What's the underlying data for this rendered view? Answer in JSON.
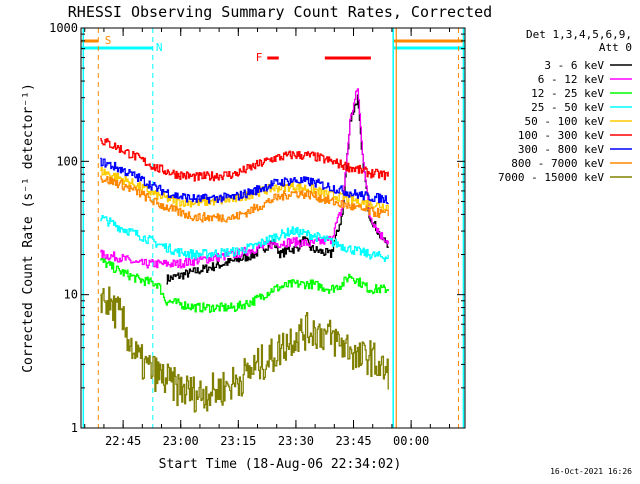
{
  "chart_data": {
    "type": "line",
    "title": "RHESSI Observing Summary Count Rates, Corrected",
    "xlabel": "Start Time (18-Aug-06 22:34:02)",
    "ylabel": "Corrected Count Rate (s⁻¹ detector⁻¹)",
    "yscale": "log",
    "ylim": [
      1,
      1000
    ],
    "xlim": [
      "22:34:02",
      "00:14:02"
    ],
    "xticks": [
      "22:45",
      "23:00",
      "23:15",
      "23:30",
      "23:45",
      "00:00"
    ],
    "yticks": [
      "1",
      "10",
      "100",
      "1000"
    ],
    "grid": false,
    "legend_position": "top-right",
    "legend_header": [
      "Det 1,3,4,5,6,9,",
      "Att 0"
    ],
    "x_unit": "minutes since 22:34:02",
    "series": [
      {
        "name": "3 - 6 keV",
        "color": "#000000",
        "x": [
          5,
          10,
          15,
          20,
          22,
          30,
          40,
          45,
          50,
          52,
          54,
          56,
          58,
          60,
          65,
          68,
          70,
          72,
          73,
          75,
          78,
          80
        ],
        "values": [
          null,
          null,
          null,
          null,
          13,
          15,
          18,
          20,
          25,
          20,
          22,
          22,
          26,
          22,
          20,
          40,
          200,
          300,
          120,
          40,
          27,
          24
        ]
      },
      {
        "name": "6 - 12 keV",
        "color": "#ff00ff",
        "x": [
          5,
          10,
          15,
          20,
          25,
          30,
          40,
          45,
          50,
          55,
          60,
          65,
          68,
          70,
          72,
          73,
          75,
          78,
          80
        ],
        "values": [
          20,
          19,
          17,
          17,
          17,
          18,
          20,
          22,
          24,
          25,
          24,
          26,
          45,
          200,
          360,
          140,
          40,
          28,
          25
        ]
      },
      {
        "name": "12 - 25 keV",
        "color": "#00ff00",
        "x": [
          5,
          10,
          15,
          20,
          22,
          30,
          40,
          45,
          50,
          55,
          60,
          65,
          68,
          70,
          75,
          80
        ],
        "values": [
          18,
          15,
          13,
          12,
          9,
          8,
          8,
          9,
          11,
          12,
          12,
          11,
          12,
          14,
          11,
          11
        ]
      },
      {
        "name": "25 - 50 keV",
        "color": "#00ffff",
        "x": [
          5,
          10,
          15,
          20,
          25,
          30,
          40,
          45,
          50,
          55,
          60,
          65,
          70,
          75,
          80
        ],
        "values": [
          38,
          32,
          28,
          24,
          21,
          20,
          21,
          23,
          27,
          30,
          28,
          25,
          22,
          20,
          19
        ]
      },
      {
        "name": "50 - 100 keV",
        "color": "#ffcc00",
        "x": [
          5,
          10,
          15,
          20,
          25,
          30,
          40,
          45,
          50,
          55,
          60,
          65,
          70,
          75,
          80
        ],
        "values": [
          85,
          75,
          65,
          55,
          50,
          49,
          52,
          58,
          63,
          65,
          62,
          56,
          52,
          48,
          46
        ]
      },
      {
        "name": "100 - 300 keV",
        "color": "#ff0000",
        "x": [
          5,
          10,
          15,
          20,
          25,
          30,
          40,
          45,
          50,
          55,
          60,
          65,
          70,
          75,
          80
        ],
        "values": [
          145,
          125,
          105,
          88,
          80,
          76,
          80,
          92,
          105,
          112,
          110,
          100,
          90,
          82,
          78
        ]
      },
      {
        "name": "300 - 800 keV",
        "color": "#0000ff",
        "x": [
          5,
          10,
          15,
          20,
          25,
          30,
          40,
          45,
          50,
          55,
          60,
          65,
          70,
          75,
          80
        ],
        "values": [
          100,
          88,
          75,
          62,
          55,
          52,
          54,
          60,
          68,
          72,
          70,
          64,
          58,
          54,
          52
        ]
      },
      {
        "name": "800 - 7000 keV",
        "color": "#ff8800",
        "x": [
          5,
          10,
          15,
          20,
          25,
          30,
          40,
          45,
          50,
          55,
          60,
          65,
          70,
          75,
          80
        ],
        "values": [
          75,
          68,
          58,
          48,
          42,
          38,
          38,
          44,
          52,
          58,
          56,
          50,
          46,
          42,
          40
        ]
      },
      {
        "name": "7000 - 15000 keV",
        "color": "#808000",
        "x": [
          5,
          8,
          10,
          12,
          14,
          16,
          20,
          25,
          30,
          35,
          40,
          45,
          50,
          55,
          60,
          65,
          68,
          70,
          72,
          75,
          78,
          80
        ],
        "values": [
          10,
          8,
          7,
          5,
          3.5,
          3,
          2.5,
          2.0,
          1.8,
          1.9,
          2.2,
          2.8,
          3.5,
          4.8,
          5.5,
          4.8,
          4.2,
          4.0,
          3.2,
          3.5,
          2.8,
          2.5
        ]
      }
    ],
    "annotations": {
      "saa_label": "S",
      "night_label": "N",
      "flare_label": "F"
    },
    "footer_date": "16-Oct-2021 16:26"
  },
  "colors": {
    "saa": "#ff8800",
    "night": "#00ffff",
    "flare": "#ff0000"
  }
}
